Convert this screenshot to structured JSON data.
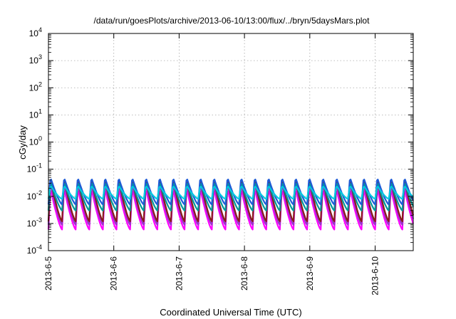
{
  "chart_data": {
    "type": "line",
    "title": "/data/run/goesPlots/archive/2013-06-10/13:00/flux/../bryn/5daysMars.plot",
    "xlabel": "Coordinated Universal Time (UTC)",
    "ylabel": "cGy/day",
    "yscale": "log",
    "ylim": [
      0.0001,
      10000
    ],
    "xlim": [
      "2013-06-05T00:00",
      "2013-06-10T14:00"
    ],
    "y_ticks": [
      {
        "base": "10",
        "exp": "4"
      },
      {
        "base": "10",
        "exp": "3"
      },
      {
        "base": "10",
        "exp": "2"
      },
      {
        "base": "10",
        "exp": "1"
      },
      {
        "base": "10",
        "exp": "0"
      },
      {
        "base": "10",
        "exp": "-1"
      },
      {
        "base": "10",
        "exp": "-2"
      },
      {
        "base": "10",
        "exp": "-3"
      },
      {
        "base": "10",
        "exp": "-4"
      }
    ],
    "x_ticks": [
      "2013-6-5",
      "2013-6-6",
      "2013-6-7",
      "2013-6-8",
      "2013-6-9",
      "2013-6-10"
    ],
    "grid": true,
    "legend": "none",
    "cycle_period_hours": 5,
    "cycle_shape": "sawtooth: sharp rise to peak, gradual decay to trough",
    "series": [
      {
        "color": "#ff00ff",
        "peak": 0.02,
        "trough": 0.0006
      },
      {
        "color": "#9932cc",
        "peak": 0.03,
        "trough": 0.0009
      },
      {
        "color": "#8b1a1a",
        "peak": 0.045,
        "trough": 0.0012
      },
      {
        "color": "#009999",
        "peak": 0.035,
        "trough": 0.003
      },
      {
        "color": "#1e5bd6",
        "peak": 0.05,
        "trough": 0.005
      },
      {
        "color": "#00c8e0",
        "peak": 0.025,
        "trough": 0.008
      }
    ]
  }
}
